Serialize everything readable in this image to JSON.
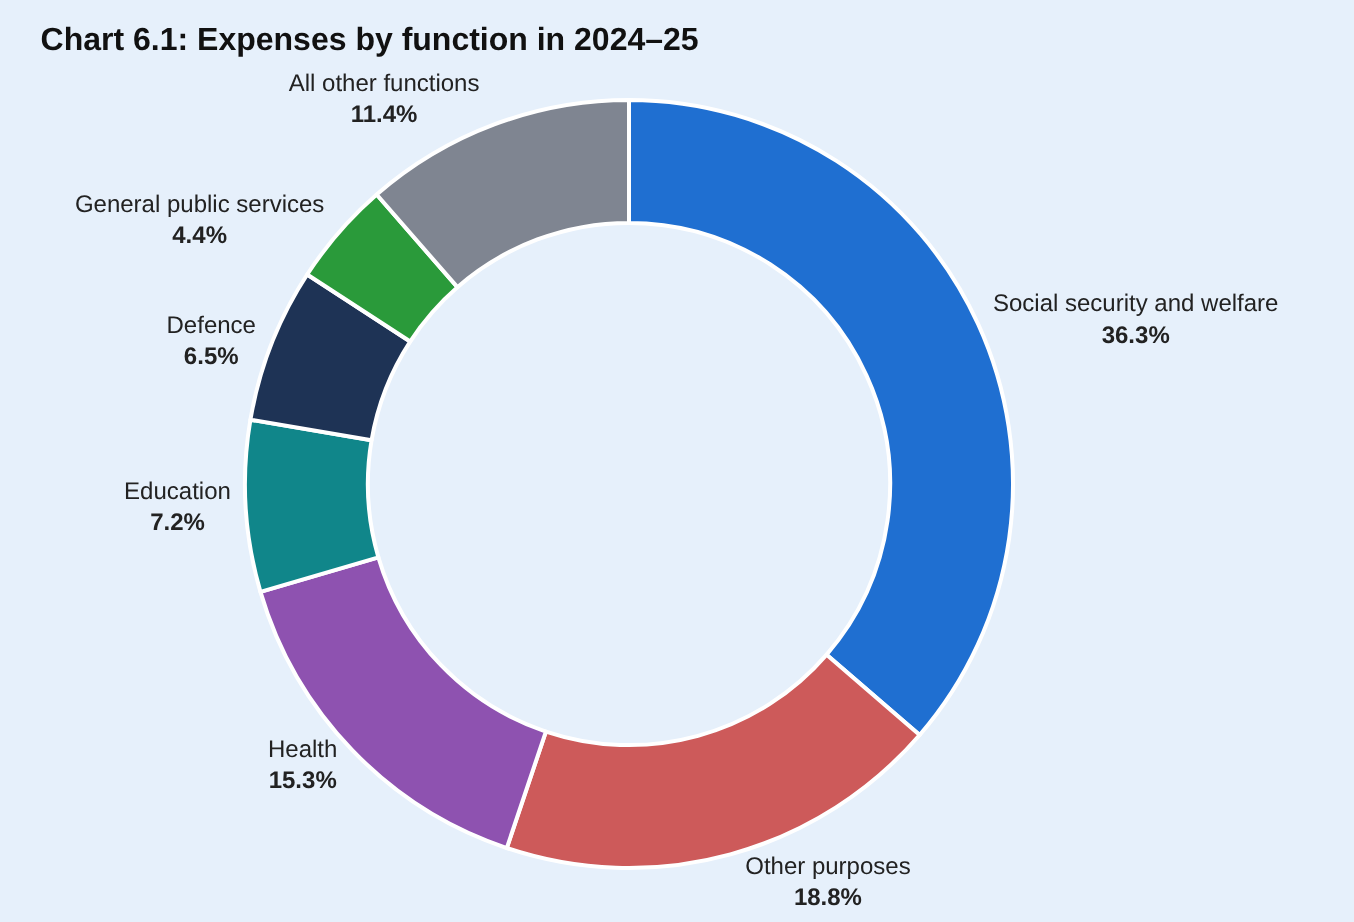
{
  "chart_data": {
    "type": "donut",
    "title": "Chart 6.1: Expenses by function in 2024–25",
    "categories": [
      "Social security and welfare",
      "Other purposes",
      "Health",
      "Education",
      "Defence",
      "General public services",
      "All other functions"
    ],
    "values": [
      36.3,
      18.8,
      15.3,
      7.2,
      6.5,
      4.4,
      11.4
    ],
    "value_labels": [
      "36.3%",
      "18.8%",
      "15.3%",
      "7.2%",
      "6.5%",
      "4.4%",
      "11.4%"
    ],
    "colors": [
      "#1f6fd1",
      "#cd5a5a",
      "#8e52b0",
      "#10868a",
      "#1e3355",
      "#2a9a3a",
      "#7f8591"
    ],
    "legend": false
  }
}
